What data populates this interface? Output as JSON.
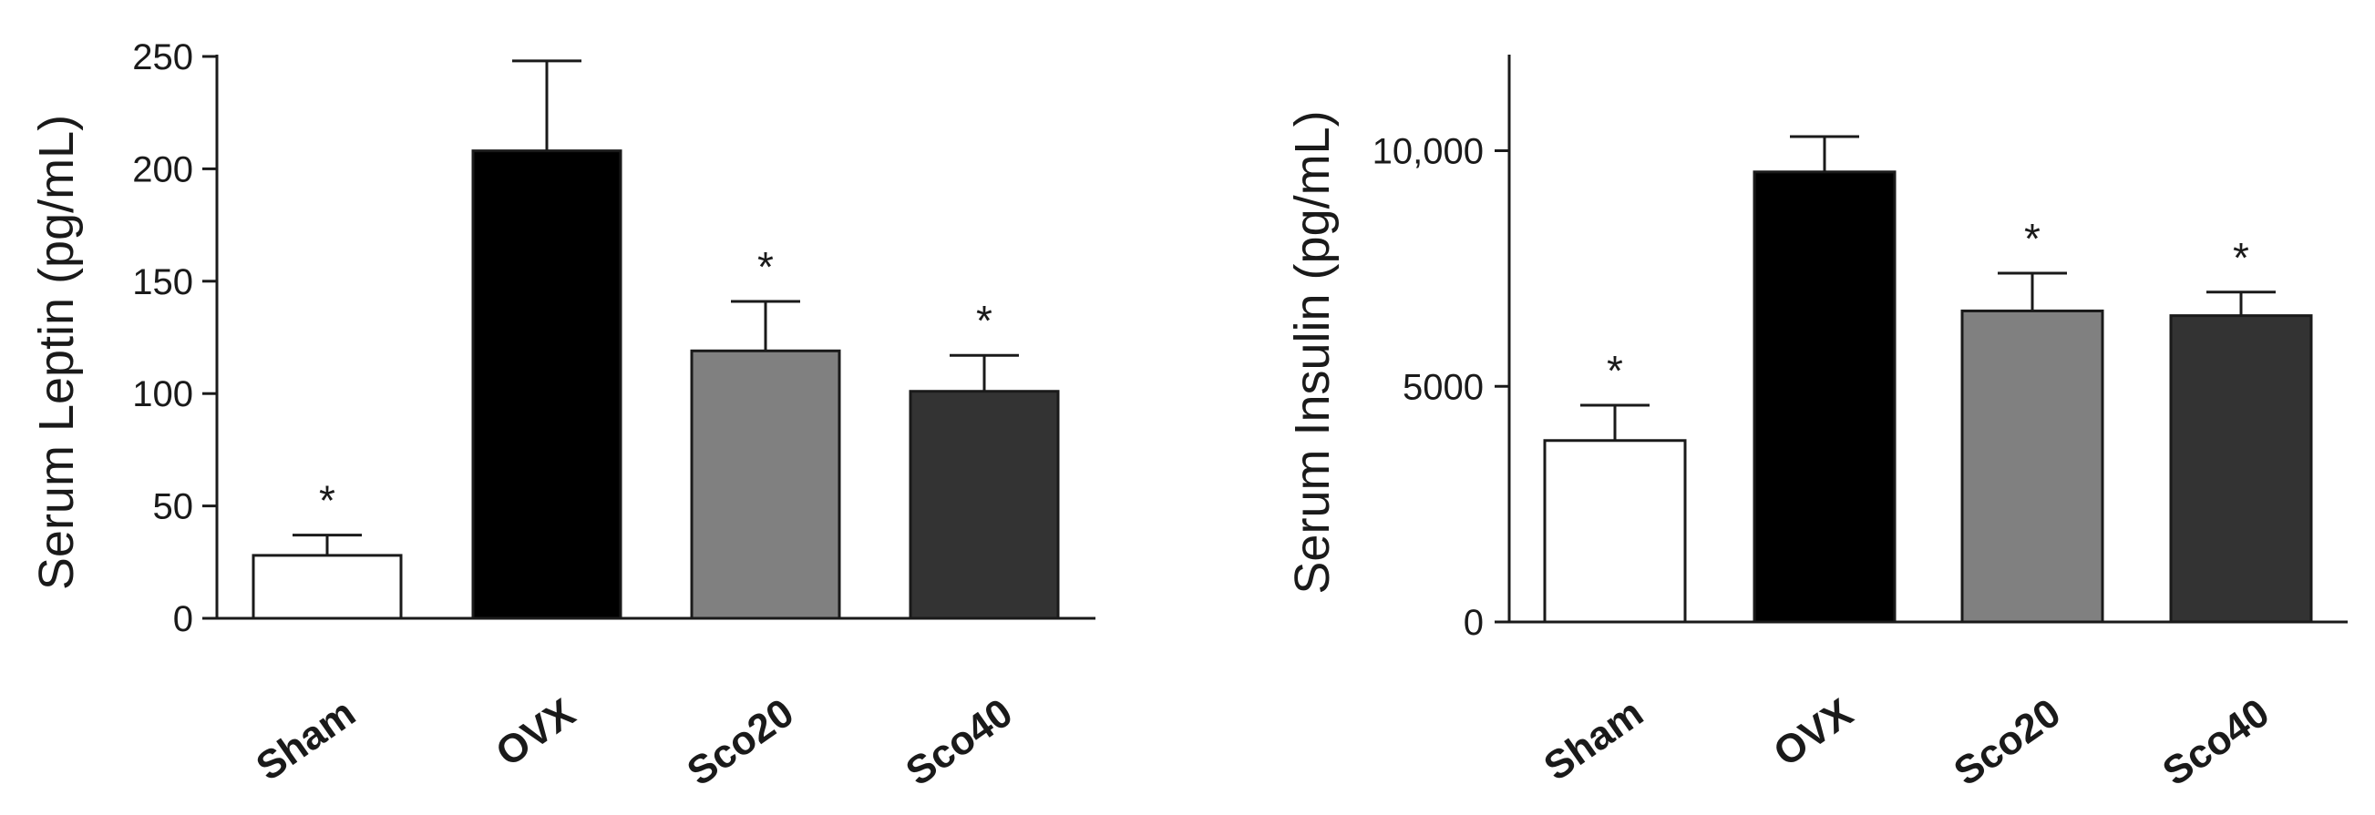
{
  "chart_data": [
    {
      "type": "bar",
      "ylabel": "Serum Leptin (pg/mL)",
      "categories": [
        "Sham",
        "OVX",
        "Sco20",
        "Sco40"
      ],
      "values": [
        28,
        208,
        119,
        101
      ],
      "errors": [
        9,
        40,
        22,
        16
      ],
      "significance": [
        "*",
        "",
        "*",
        "*"
      ],
      "colors": [
        "#ffffff",
        "#000000",
        "#808080",
        "#333333"
      ],
      "ylim": [
        0,
        250
      ],
      "yticks": [
        0,
        50,
        100,
        150,
        200,
        250
      ],
      "ytick_labels": [
        "0",
        "50",
        "100",
        "150",
        "200",
        "250"
      ],
      "grid": false
    },
    {
      "type": "bar",
      "ylabel": "Serum Insulin (pg/mL)",
      "categories": [
        "Sham",
        "OVX",
        "Sco20",
        "Sco40"
      ],
      "values": [
        3850,
        9550,
        6600,
        6500
      ],
      "errors": [
        750,
        750,
        800,
        500
      ],
      "significance": [
        "*",
        "",
        "*",
        "*"
      ],
      "colors": [
        "#ffffff",
        "#000000",
        "#808080",
        "#333333"
      ],
      "ylim": [
        0,
        12000
      ],
      "yticks": [
        0,
        5000,
        10000
      ],
      "ytick_labels": [
        "0",
        "5000",
        "10,000"
      ],
      "grid": false
    }
  ]
}
